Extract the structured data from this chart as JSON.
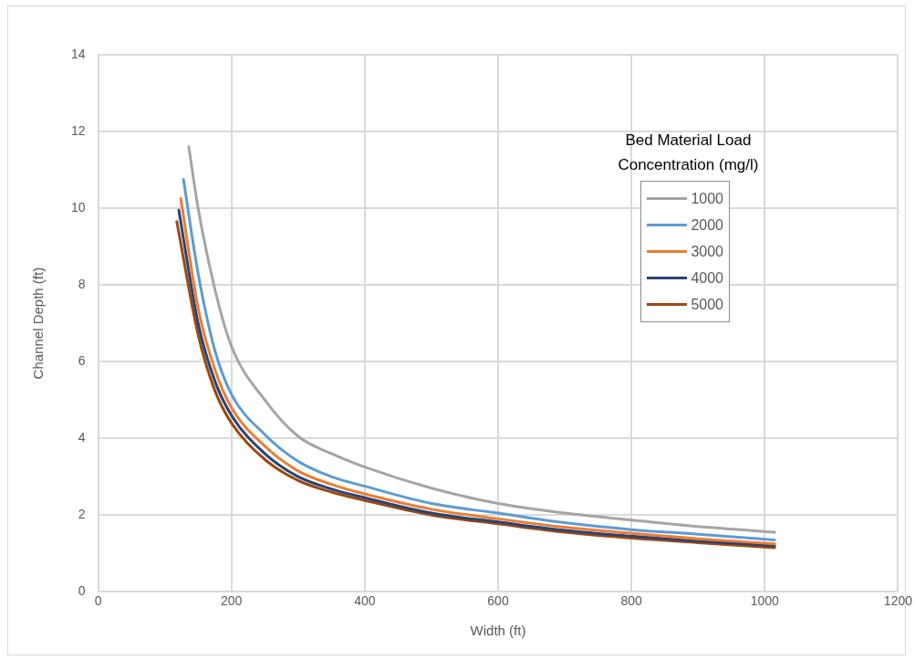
{
  "chart_data": {
    "type": "line",
    "xlabel": "Width (ft)",
    "ylabel": "Channel Depth (ft)",
    "legend_title": "Bed Material Load\nConcentration (mg/l)",
    "xlim": [
      0,
      1200
    ],
    "xticks": [
      0,
      200,
      400,
      600,
      800,
      1000,
      1200
    ],
    "ylim": [
      0,
      14
    ],
    "yticks": [
      0,
      2,
      4,
      6,
      8,
      10,
      12,
      14
    ],
    "grid": true,
    "legend": "top right",
    "marker": "none",
    "line_style": "solid",
    "series": [
      {
        "name": "1000",
        "color": "#a5a5a5",
        "x": [
          136,
          150,
          175,
          200,
          250,
          300,
          350,
          400,
          500,
          600,
          700,
          800,
          900,
          1015
        ],
        "values": [
          11.6,
          10.0,
          7.9,
          6.4,
          5.0,
          4.05,
          3.6,
          3.25,
          2.7,
          2.3,
          2.05,
          1.87,
          1.7,
          1.55
        ]
      },
      {
        "name": "2000",
        "color": "#5b9bd5",
        "x": [
          128,
          150,
          175,
          200,
          250,
          300,
          350,
          400,
          500,
          600,
          700,
          800,
          900,
          1015
        ],
        "values": [
          10.75,
          8.3,
          6.3,
          5.15,
          4.1,
          3.4,
          3.0,
          2.75,
          2.3,
          2.05,
          1.8,
          1.62,
          1.5,
          1.35
        ]
      },
      {
        "name": "3000",
        "color": "#ed7d31",
        "x": [
          124,
          150,
          175,
          200,
          250,
          300,
          350,
          400,
          500,
          600,
          700,
          800,
          900,
          1015
        ],
        "values": [
          10.25,
          7.4,
          5.8,
          4.8,
          3.8,
          3.15,
          2.8,
          2.55,
          2.15,
          1.9,
          1.68,
          1.52,
          1.38,
          1.25
        ]
      },
      {
        "name": "4000",
        "color": "#264478",
        "x": [
          121,
          150,
          175,
          200,
          250,
          300,
          350,
          400,
          500,
          600,
          700,
          800,
          900,
          1015
        ],
        "values": [
          9.95,
          7.0,
          5.5,
          4.6,
          3.6,
          3.0,
          2.68,
          2.45,
          2.05,
          1.82,
          1.6,
          1.45,
          1.32,
          1.2
        ]
      },
      {
        "name": "5000",
        "color": "#9e480e",
        "x": [
          118,
          150,
          175,
          200,
          250,
          300,
          350,
          400,
          500,
          600,
          700,
          800,
          900,
          1015
        ],
        "values": [
          9.65,
          6.7,
          5.25,
          4.4,
          3.45,
          2.9,
          2.6,
          2.38,
          2.0,
          1.77,
          1.55,
          1.4,
          1.28,
          1.15
        ]
      }
    ]
  }
}
